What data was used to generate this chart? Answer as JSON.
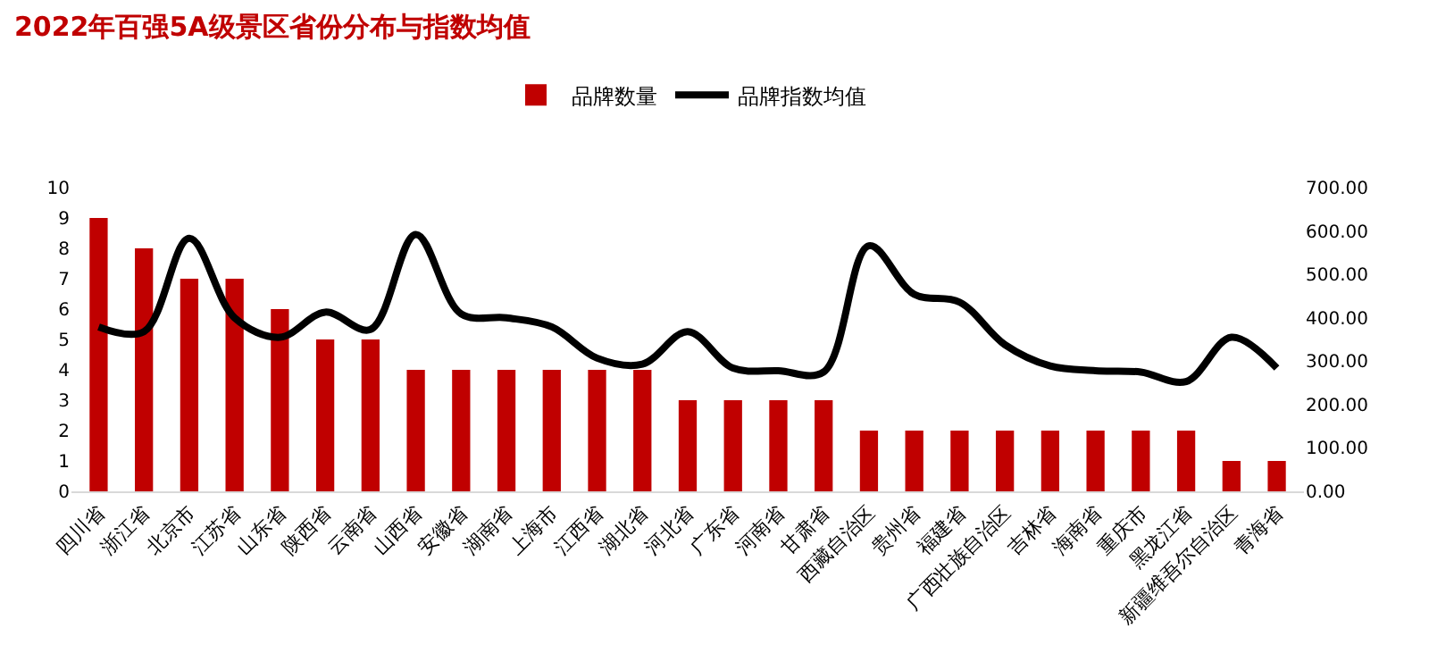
{
  "chart_data": {
    "type": "bar",
    "title": "2022年百强5A级景区省份分布与指数均值",
    "categories": [
      "四川省",
      "浙江省",
      "北京市",
      "江苏省",
      "山东省",
      "陕西省",
      "云南省",
      "山西省",
      "安徽省",
      "湖南省",
      "上海市",
      "江西省",
      "湖北省",
      "河北省",
      "广东省",
      "河南省",
      "甘肃省",
      "西藏自治区",
      "贵州省",
      "福建省",
      "广西壮族自治区",
      "吉林省",
      "海南省",
      "重庆市",
      "黑龙江省",
      "新疆维吾尔自治区",
      "青海省"
    ],
    "series": [
      {
        "name": "品牌数量",
        "color": "#c00000",
        "values": [
          9,
          8,
          7,
          7,
          6,
          5,
          5,
          4,
          4,
          4,
          4,
          4,
          4,
          3,
          3,
          3,
          3,
          2,
          2,
          2,
          2,
          2,
          2,
          2,
          2,
          1,
          1
        ]
      },
      {
        "name": "品牌指数均值",
        "type": "line",
        "axis": "y2",
        "color": "#000000",
        "values": [
          379,
          368,
          583,
          400,
          355,
          413,
          373,
          592,
          409,
          400,
          379,
          307,
          293,
          368,
          284,
          278,
          275,
          566,
          454,
          436,
          338,
          289,
          278,
          275,
          253,
          355,
          284
        ]
      }
    ],
    "ylim": [
      0,
      10
    ],
    "yticks": [
      0,
      1,
      2,
      3,
      4,
      5,
      6,
      7,
      8,
      9,
      10
    ],
    "y2lim": [
      0,
      700
    ],
    "y2ticks": [
      {
        "value": 0,
        "label": "0.00"
      },
      {
        "value": 100,
        "label": "100.00"
      },
      {
        "value": 200,
        "label": "200.00"
      },
      {
        "value": 300,
        "label": "300.00"
      },
      {
        "value": 400,
        "label": "400.00"
      },
      {
        "value": 500,
        "label": "500.00"
      },
      {
        "value": 600,
        "label": "600.00"
      },
      {
        "value": 700,
        "label": "700.00"
      }
    ],
    "grid": false,
    "legend": "top"
  }
}
